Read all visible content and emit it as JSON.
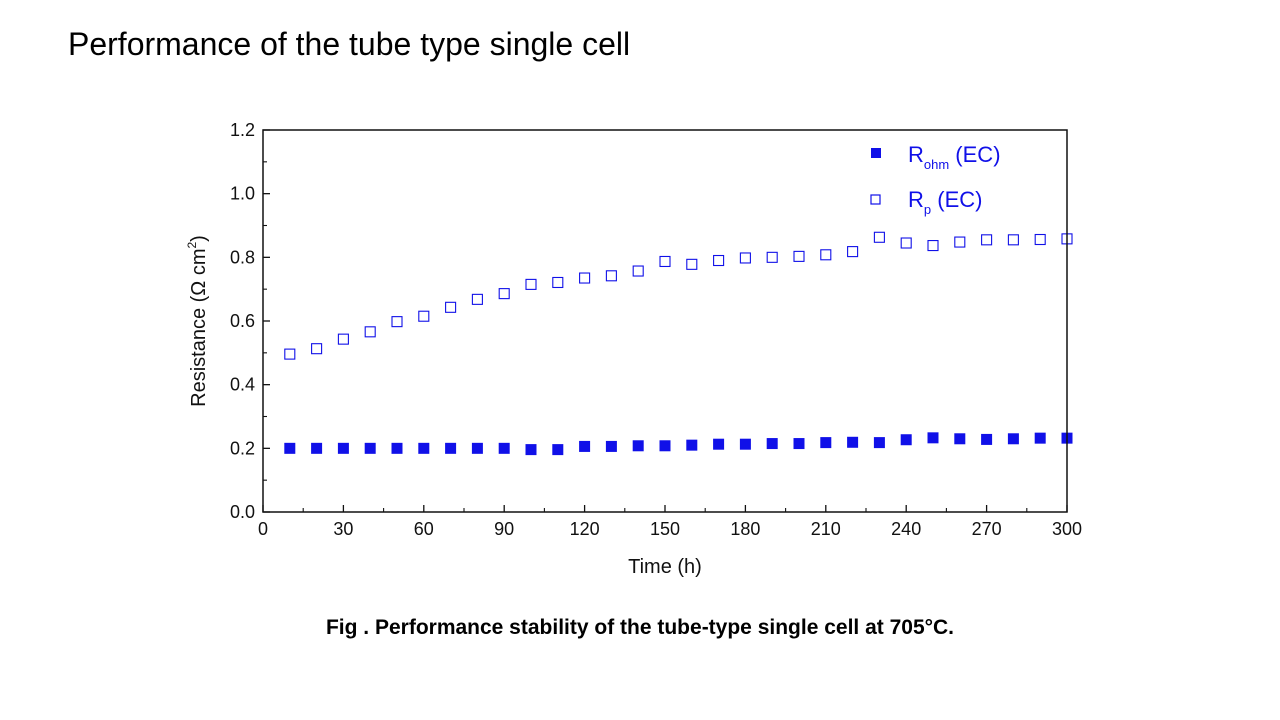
{
  "slide": {
    "title": "Performance of the tube type single cell",
    "caption": "Fig . Performance stability of the tube-type single cell at 705°C."
  },
  "colors": {
    "series": "#1010e8",
    "axis": "#111111"
  },
  "chart_data": {
    "type": "scatter",
    "title": "",
    "xlabel": "Time (h)",
    "ylabel": {
      "prefix": "Resistance (Ω cm",
      "sup": "2",
      "suffix": ")"
    },
    "xlim": [
      0,
      300
    ],
    "ylim": [
      0.0,
      1.2
    ],
    "xticks": [
      0,
      30,
      60,
      90,
      120,
      150,
      180,
      210,
      240,
      270,
      300
    ],
    "yticks": [
      0.0,
      0.2,
      0.4,
      0.6,
      0.8,
      1.0,
      1.2
    ],
    "ytick_labels": [
      "0.0",
      "0.2",
      "0.4",
      "0.6",
      "0.8",
      "1.0",
      "1.2"
    ],
    "grid": false,
    "legend_position": "top-right",
    "x": [
      10,
      20,
      30,
      40,
      50,
      60,
      70,
      80,
      90,
      100,
      110,
      120,
      130,
      140,
      150,
      160,
      170,
      180,
      190,
      200,
      210,
      220,
      230,
      240,
      250,
      260,
      270,
      280,
      290,
      300
    ],
    "series": [
      {
        "name": "R_ohm (EC)",
        "legend_main": "R",
        "legend_sub": "ohm",
        "legend_suffix": " (EC)",
        "marker": "filled-square",
        "values": [
          0.2,
          0.2,
          0.2,
          0.2,
          0.2,
          0.2,
          0.2,
          0.2,
          0.2,
          0.196,
          0.196,
          0.206,
          0.206,
          0.208,
          0.208,
          0.21,
          0.213,
          0.213,
          0.215,
          0.215,
          0.218,
          0.219,
          0.218,
          0.227,
          0.233,
          0.23,
          0.228,
          0.23,
          0.232,
          0.232
        ]
      },
      {
        "name": "R_p (EC)",
        "legend_main": "R",
        "legend_sub": "p",
        "legend_suffix": " (EC)",
        "marker": "open-square",
        "values": [
          0.496,
          0.513,
          0.543,
          0.566,
          0.598,
          0.615,
          0.643,
          0.668,
          0.686,
          0.715,
          0.721,
          0.735,
          0.742,
          0.757,
          0.787,
          0.778,
          0.79,
          0.798,
          0.8,
          0.803,
          0.808,
          0.818,
          0.863,
          0.845,
          0.837,
          0.848,
          0.855,
          0.855,
          0.856,
          0.858
        ]
      }
    ]
  }
}
